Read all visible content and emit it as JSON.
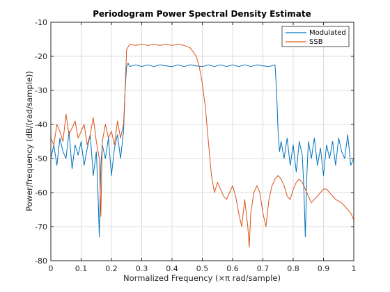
{
  "chart_data": {
    "type": "line",
    "title": "Periodogram Power Spectral Density Estimate",
    "xlabel": "Normalized Frequency  (×π rad/sample)",
    "ylabel": "Power/frequency (dB/(rad/sample))",
    "xlim": [
      0,
      1
    ],
    "ylim": [
      -80,
      -10
    ],
    "xticks": [
      "0",
      "0.1",
      "0.2",
      "0.3",
      "0.4",
      "0.5",
      "0.6",
      "0.7",
      "0.8",
      "0.9",
      "1"
    ],
    "yticks": [
      "-10",
      "-20",
      "-30",
      "-40",
      "-50",
      "-60",
      "-70",
      "-80"
    ],
    "grid": true,
    "legend_position": "top-right",
    "series": [
      {
        "name": "Modulated",
        "color": "#0072bd",
        "x": [
          0,
          0.01,
          0.02,
          0.03,
          0.04,
          0.05,
          0.06,
          0.07,
          0.08,
          0.09,
          0.1,
          0.11,
          0.12,
          0.13,
          0.14,
          0.15,
          0.155,
          0.16,
          0.165,
          0.17,
          0.18,
          0.19,
          0.2,
          0.21,
          0.22,
          0.23,
          0.24,
          0.245,
          0.25,
          0.255,
          0.26,
          0.28,
          0.3,
          0.32,
          0.34,
          0.36,
          0.38,
          0.4,
          0.42,
          0.44,
          0.46,
          0.48,
          0.5,
          0.52,
          0.54,
          0.56,
          0.58,
          0.6,
          0.62,
          0.64,
          0.66,
          0.68,
          0.7,
          0.72,
          0.74,
          0.745,
          0.75,
          0.755,
          0.76,
          0.77,
          0.78,
          0.79,
          0.8,
          0.81,
          0.82,
          0.83,
          0.835,
          0.84,
          0.845,
          0.85,
          0.86,
          0.87,
          0.88,
          0.89,
          0.9,
          0.91,
          0.92,
          0.93,
          0.94,
          0.95,
          0.96,
          0.97,
          0.98,
          0.99,
          1
        ],
        "y": [
          -50,
          -46,
          -52,
          -44,
          -48,
          -50,
          -42,
          -53,
          -46,
          -49,
          -45,
          -52,
          -47,
          -43,
          -55,
          -48,
          -58,
          -73,
          -52,
          -46,
          -50,
          -44,
          -55,
          -47,
          -43,
          -50,
          -42,
          -30,
          -23,
          -22,
          -23,
          -22.5,
          -23,
          -22.5,
          -23,
          -22.5,
          -22.8,
          -23,
          -22.5,
          -23,
          -22.5,
          -22.8,
          -23,
          -22.5,
          -23,
          -22.5,
          -23,
          -22.5,
          -23,
          -22.5,
          -23,
          -22.5,
          -22.8,
          -23,
          -22.5,
          -30,
          -42,
          -48,
          -45,
          -50,
          -44,
          -52,
          -46,
          -54,
          -45,
          -49,
          -58,
          -73,
          -55,
          -45,
          -50,
          -44,
          -52,
          -47,
          -55,
          -46,
          -50,
          -45,
          -52,
          -44,
          -48,
          -50,
          -43,
          -52,
          -50
        ]
      },
      {
        "name": "SSB",
        "color": "#d95319",
        "x": [
          0,
          0.01,
          0.02,
          0.03,
          0.04,
          0.05,
          0.06,
          0.07,
          0.08,
          0.09,
          0.1,
          0.11,
          0.12,
          0.13,
          0.14,
          0.15,
          0.16,
          0.165,
          0.17,
          0.18,
          0.19,
          0.2,
          0.21,
          0.22,
          0.23,
          0.24,
          0.245,
          0.25,
          0.26,
          0.28,
          0.3,
          0.32,
          0.34,
          0.36,
          0.38,
          0.4,
          0.42,
          0.44,
          0.46,
          0.48,
          0.49,
          0.5,
          0.51,
          0.52,
          0.53,
          0.54,
          0.55,
          0.56,
          0.57,
          0.58,
          0.59,
          0.6,
          0.61,
          0.62,
          0.63,
          0.64,
          0.65,
          0.655,
          0.66,
          0.67,
          0.68,
          0.69,
          0.7,
          0.71,
          0.72,
          0.73,
          0.74,
          0.75,
          0.76,
          0.77,
          0.78,
          0.79,
          0.8,
          0.81,
          0.82,
          0.83,
          0.84,
          0.85,
          0.86,
          0.87,
          0.88,
          0.89,
          0.9,
          0.91,
          0.92,
          0.93,
          0.94,
          0.95,
          0.96,
          0.97,
          0.98,
          0.99,
          1
        ],
        "y": [
          -44,
          -46,
          -40,
          -42,
          -45,
          -37,
          -43,
          -41,
          -39,
          -44,
          -42,
          -40,
          -46,
          -43,
          -38,
          -45,
          -50,
          -67,
          -45,
          -40,
          -44,
          -42,
          -46,
          -39,
          -44,
          -40,
          -30,
          -18,
          -16.5,
          -16.8,
          -16.5,
          -16.8,
          -16.5,
          -16.8,
          -16.5,
          -16.8,
          -16.5,
          -16.8,
          -17.5,
          -20,
          -23,
          -28,
          -35,
          -45,
          -55,
          -60,
          -57,
          -59,
          -61,
          -62,
          -60,
          -58,
          -61,
          -66,
          -70,
          -62,
          -70,
          -76,
          -66,
          -60,
          -58,
          -60,
          -66,
          -70,
          -62,
          -58,
          -56,
          -55,
          -56,
          -58,
          -61,
          -62,
          -59,
          -57,
          -56,
          -57,
          -59,
          -61,
          -63,
          -62,
          -61,
          -60,
          -59,
          -59,
          -60,
          -61,
          -62,
          -62.5,
          -63,
          -64,
          -65,
          -66,
          -68
        ]
      }
    ]
  }
}
